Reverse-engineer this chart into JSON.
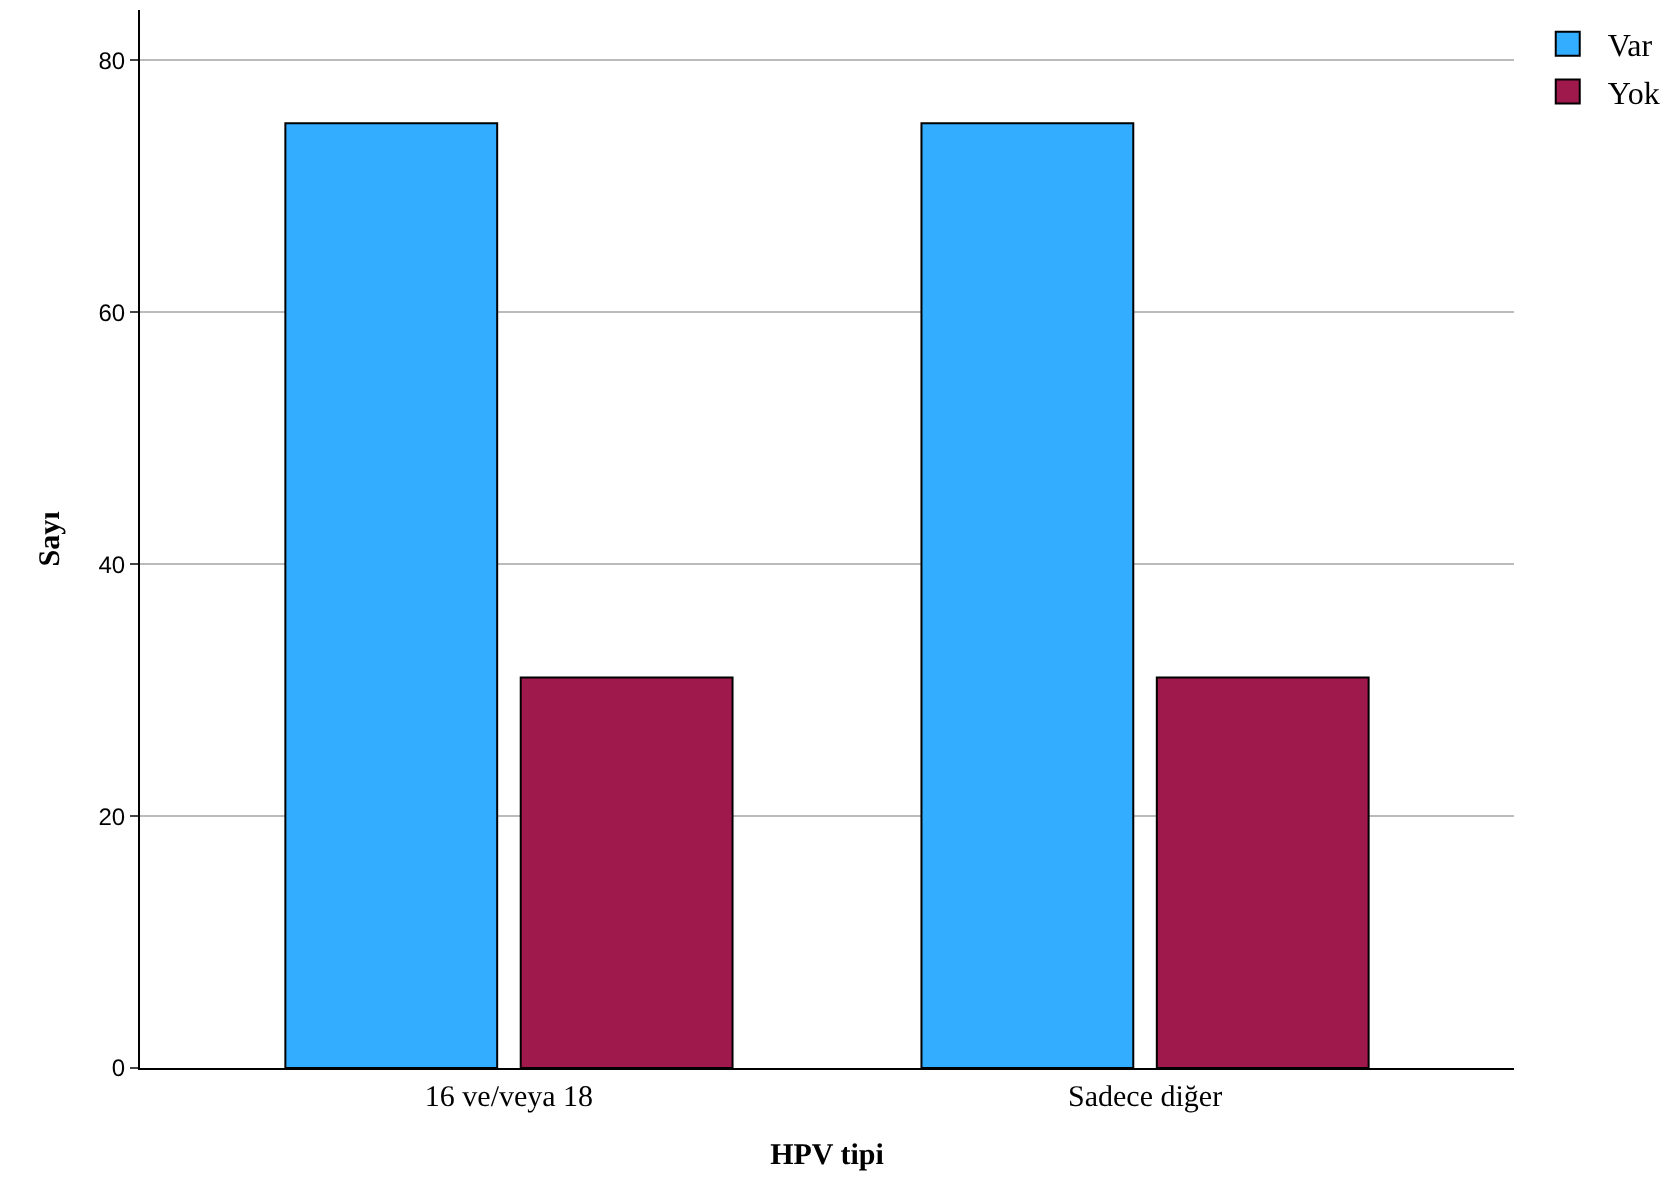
{
  "chart_data": {
    "type": "bar",
    "xlabel": "HPV tipi",
    "ylabel": "Sayı",
    "categories": [
      "16 ve/veya 18",
      "Sadece diğer"
    ],
    "series": [
      {
        "name": "Var",
        "color": "#33adff",
        "values": [
          75,
          75
        ]
      },
      {
        "name": "Yok",
        "color": "#a0194c",
        "values": [
          31,
          31
        ]
      }
    ],
    "ylim": [
      0,
      84
    ],
    "yticks": [
      0,
      20,
      40,
      60,
      80
    ],
    "grid": "y",
    "legend": "top right"
  }
}
